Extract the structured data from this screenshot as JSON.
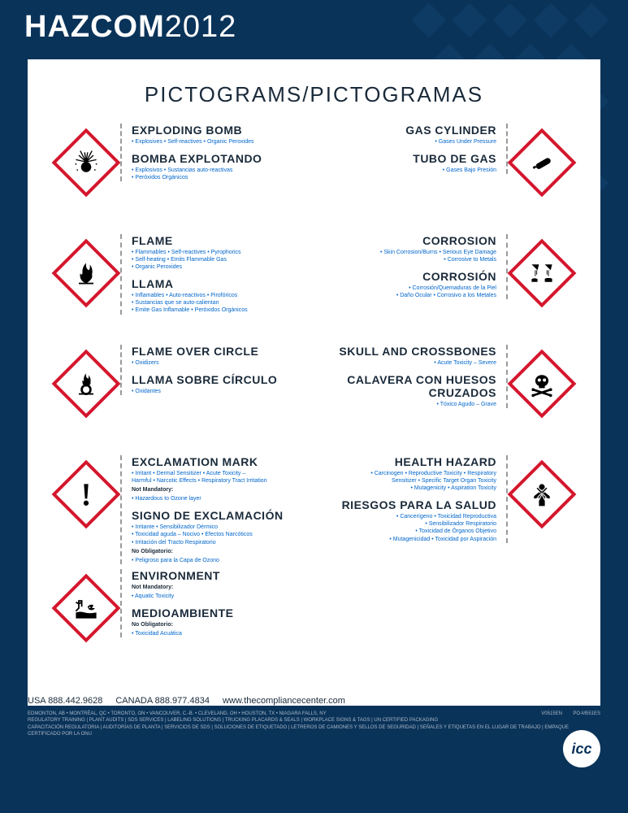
{
  "colors": {
    "background": "#0a3359",
    "diamond_border": "#d4162c",
    "text_heading": "#1a2a3a",
    "text_desc": "#0066cc",
    "footer_text": "#aab8c8",
    "white": "#ffffff"
  },
  "header": {
    "title_bold": "HAZCOM",
    "title_light": "2012"
  },
  "section_title": "PICTOGRAMS/PICTOGRAMAS",
  "pictograms": [
    {
      "en_name": "EXPLODING BOMB",
      "en_desc": "• Explosives  • Self-reactives  • Organic Peroxides",
      "es_name": "BOMBA EXPLOTANDO",
      "es_desc": "• Explosivos  • Sustancias auto-reactivas\n• Peróxidos Orgánicos",
      "icon": "exploding-bomb"
    },
    {
      "en_name": "GAS CYLINDER",
      "en_desc": "• Gases Under Pressure",
      "es_name": "TUBO DE GAS",
      "es_desc": "• Gases Bajo Presión",
      "icon": "gas-cylinder"
    },
    {
      "en_name": "FLAME",
      "en_desc": "• Flammables  • Self-reactives  • Pyrophorics\n• Self-heating  • Emits Flammable Gas\n• Organic Peroxides",
      "es_name": "LLAMA",
      "es_desc": "• Inflamables  • Auto-reactivos • Pirofóricos\n• Sustancias que se auto-calientan\n• Emite Gas Inflamable • Peróxidos Orgánicos",
      "icon": "flame"
    },
    {
      "en_name": "CORROSION",
      "en_desc": "• Skin Corrosion/Burns  • Serious Eye Damage\n• Corrosive to Metals",
      "es_name": "CORROSIÓN",
      "es_desc": "• Corrosión/Quemaduras de la Piel\n• Daño Ocular • Corrosivo a los Metales",
      "icon": "corrosion"
    },
    {
      "en_name": "FLAME OVER CIRCLE",
      "en_desc": "• Oxidizers",
      "es_name": "LLAMA SOBRE CÍRCULO",
      "es_desc": "• Oxidantes",
      "icon": "flame-circle"
    },
    {
      "en_name": "SKULL AND CROSSBONES",
      "en_desc": "• Acute Toxicity – Severe",
      "es_name": "CALAVERA CON HUESOS CRUZADOS",
      "es_desc": "• Tóxico Agudo – Grave",
      "icon": "skull"
    },
    {
      "en_name": "EXCLAMATION MARK",
      "en_desc": "• Irritant  • Dermal Sensitizer  • Acute Toxicity –\nHarmful  • Narcotic Effects  • Respiratory Tract Irritation",
      "en_nm": "Not Mandatory:",
      "en_nm_desc": "• Hazardous to Ozone layer",
      "es_name": "SIGNO DE EXCLAMACIÓN",
      "es_desc": "• Irritante • Sensibilizador Dérmico\n• Toxicidad aguda – Nocivo • Efectos Narcóticos\n• Irritación del Tracto Respiratorio",
      "es_nm": "No Obligatorio:",
      "es_nm_desc": "• Peligroso para la Capa de Ozono",
      "icon": "exclamation"
    },
    {
      "en_name": "HEALTH HAZARD",
      "en_desc": "• Carcinogen • Reproductive Toxicity • Respiratory\nSensitizer • Specific Target Organ Toxicity\n• Mutagenicity • Aspiration Toxicity",
      "es_name": "RIESGOS PARA LA SALUD",
      "es_desc": "• Cancerígeno • Toxicidad Reproductiva\n• Sensibilizador Respiratorio\n• Toxicidad de Órganos Objetivo\n• Mutagenicidad • Toxicidad por Aspiración",
      "icon": "health"
    },
    {
      "en_name": "ENVIRONMENT",
      "en_nm": "Not Mandatory:",
      "en_desc": "• Aquatic Toxicity",
      "es_name": "MEDIOAMBIENTE",
      "es_nm": "No Obligatorio:",
      "es_desc": "• Toxicidad Acuática",
      "icon": "environment"
    }
  ],
  "contact": {
    "usa": "USA 888.442.9628",
    "canada": "CANADA 888.977.4834",
    "web": "www.thecompliancecenter.com"
  },
  "footer": {
    "cities": "EDMONTON, AB  •  MONTRÉAL, QC  •  TORONTO, ON  •  VANCOUVER, C.-B.  •  CLEVELAND, OH  •  HOUSTON, TX  •  NIAGARA FALLS, NY",
    "code1": "V0515EN",
    "code2": "PO-M551ES",
    "line2": "REGULATORY TRAINING  |  PLANT AUDITS  |  SDS SERVICES  |  LABELING SOLUTIONS  |  TRUCKING PLACARDS & SEALS  |  WORKPLACE SIGNS & TAGS  |  UN CERTIFIED PACKAGING",
    "line3": "CAPACITACIÓN REGULATORIA  |  AUDITORÍAS DE PLANTA  |  SERVICIOS DE SDS  |  SOLUCIONES DE ETIQUETADO  |  LETREROS DE CAMIONES Y SELLOS DE SEGURIDAD  |  SEÑALES Y ETIQUETAS EN EL LUGAR DE TRABAJO  |  EMPAQUE CERTIFICADO POR LA ONU"
  },
  "logo": "icc"
}
